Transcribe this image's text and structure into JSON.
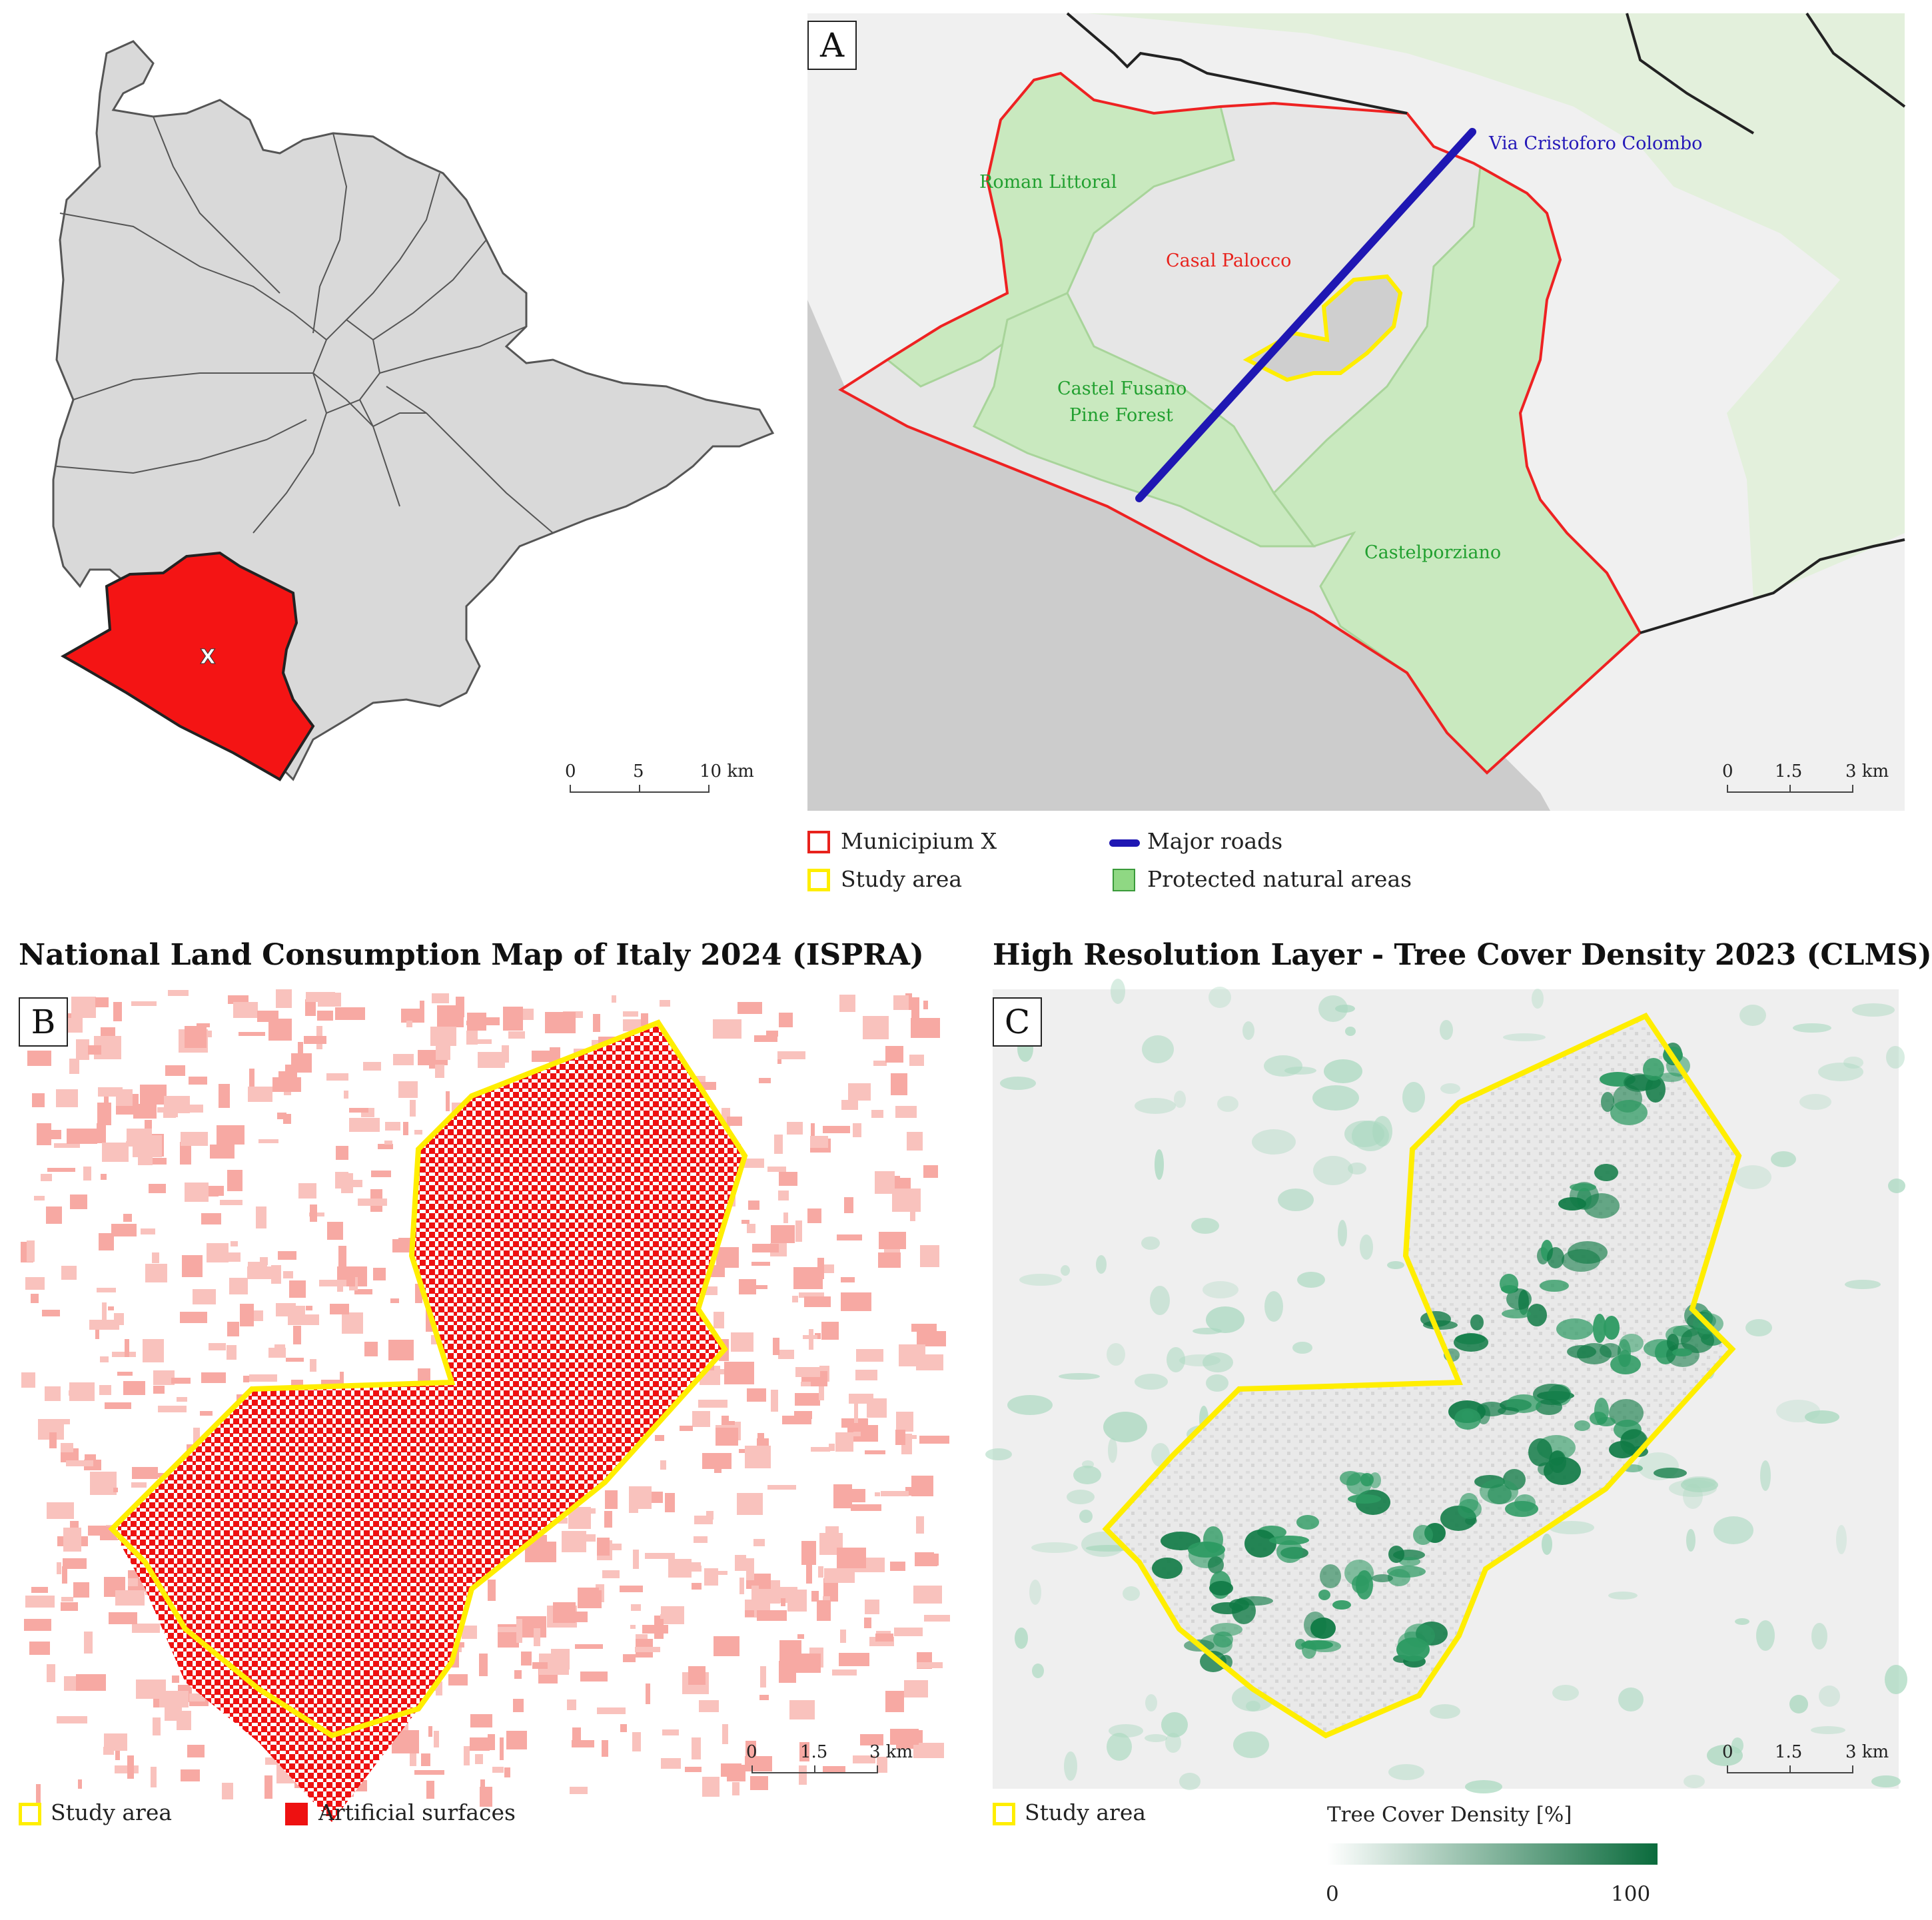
{
  "overview_map": {
    "district_label": "X",
    "scale": {
      "ticks": [
        "0",
        "5",
        "10 km"
      ]
    }
  },
  "panel_a": {
    "letter": "A",
    "labels": {
      "roman_littoral": "Roman Littoral",
      "casal_palocco": "Casal Palocco",
      "via_colombo": "Via Cristoforo Colombo",
      "castel_fusano_1": "Castel Fusano",
      "castel_fusano_2": "Pine Forest",
      "castelporziano": "Castelporziano"
    },
    "scale": {
      "ticks": [
        "0",
        "1.5",
        "3 km"
      ]
    },
    "legend": {
      "municipium": "Municipium X",
      "study_area": "Study area",
      "major_roads": "Major roads",
      "protected": "Protected natural areas"
    }
  },
  "panel_b": {
    "title": "National Land Consumption Map of Italy 2024 (ISPRA)",
    "letter": "B",
    "scale": {
      "ticks": [
        "0",
        "1.5",
        "3 km"
      ]
    },
    "legend": {
      "study_area": "Study area",
      "artificial": "Artificial surfaces"
    }
  },
  "panel_c": {
    "title": "High Resolution Layer - Tree Cover Density 2023 (CLMS)",
    "letter": "C",
    "scale": {
      "ticks": [
        "0",
        "1.5",
        "3 km"
      ]
    },
    "legend": {
      "study_area": "Study area"
    },
    "colorbar": {
      "title": "Tree Cover Density [%]",
      "min": "0",
      "max": "100"
    }
  },
  "colors": {
    "municipium": "#e8221c",
    "study_area": "#ffee00",
    "major_roads": "#1f17b3",
    "protected": "#8fd883",
    "artificial": "#ee1111",
    "tree_high": "#0a6b3c"
  }
}
